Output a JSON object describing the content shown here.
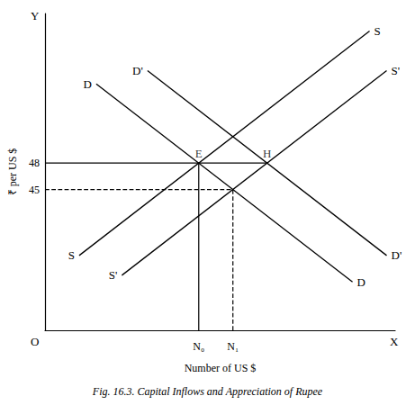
{
  "chart_data": {
    "type": "line",
    "title": "Fig. 16.3. Capital Inflows and Appreciation of Rupee",
    "x_label": "Number of US $",
    "y_label": "₹ per US $",
    "axis_end_labels": {
      "x": "X",
      "y": "Y"
    },
    "origin_label": "O",
    "xlim": [
      0,
      41
    ],
    "ylim": [
      29,
      65
    ],
    "xticks": [
      {
        "value": 18,
        "label": "N₀"
      },
      {
        "value": 22,
        "label": "N₁"
      }
    ],
    "yticks": [
      45,
      48
    ],
    "grid": false,
    "color": "#000000",
    "series": [
      {
        "name": "D",
        "x": [
          6,
          36
        ],
        "values": [
          57,
          34.5
        ]
      },
      {
        "name": "D'",
        "x": [
          12,
          40
        ],
        "values": [
          58.5,
          37.5
        ]
      },
      {
        "name": "S",
        "x": [
          4,
          38
        ],
        "values": [
          37.5,
          63
        ]
      },
      {
        "name": "S'",
        "x": [
          9,
          40
        ],
        "values": [
          35.25,
          58.5
        ]
      }
    ],
    "guides": [
      {
        "x": [
          0,
          26
        ],
        "values": [
          48,
          48
        ],
        "line_style": "solid"
      },
      {
        "x": [
          18,
          18
        ],
        "values": [
          29,
          48
        ],
        "line_style": "solid"
      },
      {
        "x": [
          0,
          22
        ],
        "values": [
          45,
          45
        ],
        "line_style": "dashed"
      },
      {
        "x": [
          22,
          22
        ],
        "values": [
          29,
          45
        ],
        "line_style": "dashed"
      }
    ],
    "annotations": [
      {
        "text": "E",
        "x": 18,
        "y": 48
      },
      {
        "text": "H",
        "x": 26,
        "y": 48
      }
    ]
  }
}
